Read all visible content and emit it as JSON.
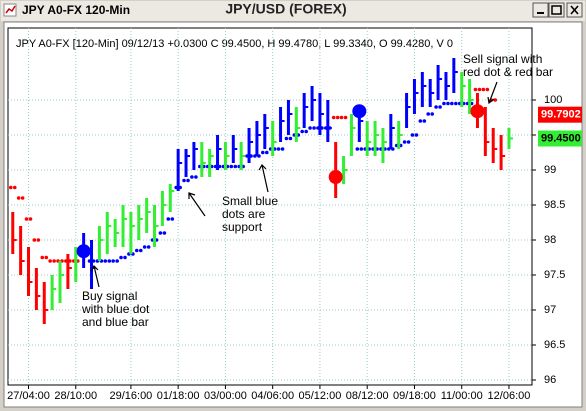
{
  "window": {
    "title": "JPY A0-FX 120-Min"
  },
  "chart_data": {
    "type": "ohlc",
    "title": "JPY/USD (FOREX)",
    "subtitle": "JPY A0-FX [120-Min] 09/12/13 +0.0300 C 99.4500, H 99.4780, L 99.3340, O 99.4280, V 0",
    "xlim": [
      -0.35,
      64.4
    ],
    "ylim": [
      95.95,
      101.0
    ],
    "yticks": [
      96,
      96.5,
      97,
      97.5,
      98,
      98.5,
      99,
      99.5,
      100
    ],
    "xticks": [
      {
        "value": 2,
        "label": "27/04:00"
      },
      {
        "value": 8,
        "label": "28/10:00"
      },
      {
        "value": 15,
        "label": "29/16:00"
      },
      {
        "value": 21,
        "label": "01/18:00"
      },
      {
        "value": 27,
        "label": "03/00:00"
      },
      {
        "value": 33,
        "label": "04/06:00"
      },
      {
        "value": 39,
        "label": "05/12:00"
      },
      {
        "value": 45,
        "label": "08/12:00"
      },
      {
        "value": 51,
        "label": "09/18:00"
      },
      {
        "value": 57,
        "label": "11/00:00"
      },
      {
        "value": 63,
        "label": "12/06:00"
      }
    ],
    "grid": true,
    "high": [
      98.4,
      98.2,
      97.9,
      97.6,
      97.4,
      97.5,
      97.7,
      97.8,
      97.9,
      98.1,
      98.0,
      98.2,
      98.4,
      98.3,
      98.5,
      98.4,
      98.5,
      98.6,
      98.5,
      98.7,
      98.8,
      99.3,
      99.3,
      99.4,
      99.4,
      99.3,
      99.5,
      99.4,
      99.5,
      99.4,
      99.6,
      99.7,
      99.8,
      99.7,
      99.9,
      100.0,
      99.9,
      100.1,
      100.2,
      100.1,
      100.0,
      99.4,
      99.2,
      99.8,
      99.9,
      99.7,
      99.7,
      99.6,
      99.8,
      99.7,
      100.1,
      100.3,
      100.4,
      100.3,
      100.5,
      100.4,
      100.6,
      100.4,
      100.3,
      100.1,
      99.9,
      99.6,
      99.5,
      99.6
    ],
    "low": [
      97.8,
      97.5,
      97.2,
      97.0,
      96.8,
      97.0,
      97.1,
      97.3,
      97.4,
      97.6,
      97.3,
      97.7,
      97.8,
      97.9,
      97.9,
      97.8,
      98.0,
      98.1,
      97.9,
      98.2,
      98.4,
      98.7,
      98.9,
      99.0,
      98.9,
      98.9,
      99.0,
      99.0,
      99.1,
      99.0,
      99.1,
      99.2,
      99.3,
      99.2,
      99.4,
      99.5,
      99.4,
      99.6,
      99.7,
      99.5,
      99.4,
      98.6,
      98.8,
      99.2,
      99.4,
      99.2,
      99.2,
      99.1,
      99.3,
      99.3,
      99.6,
      99.8,
      99.9,
      99.9,
      100.0,
      100.0,
      100.1,
      99.9,
      99.8,
      99.6,
      99.2,
      99.1,
      99.0,
      99.3
    ],
    "close": [
      98.0,
      97.7,
      97.4,
      97.2,
      97.0,
      97.3,
      97.5,
      97.6,
      97.8,
      97.9,
      97.6,
      98.0,
      98.2,
      98.1,
      98.3,
      98.2,
      98.3,
      98.4,
      98.2,
      98.5,
      98.7,
      99.1,
      99.2,
      99.3,
      99.1,
      99.2,
      99.3,
      99.2,
      99.3,
      99.2,
      99.4,
      99.5,
      99.6,
      99.4,
      99.7,
      99.8,
      99.6,
      99.9,
      100.0,
      99.8,
      99.6,
      98.9,
      99.0,
      99.6,
      99.7,
      99.4,
      99.5,
      99.4,
      99.6,
      99.5,
      99.9,
      100.1,
      100.2,
      100.1,
      100.3,
      100.2,
      100.4,
      100.2,
      100.0,
      99.8,
      99.4,
      99.3,
      99.2,
      99.45
    ],
    "bar_colors": [
      "red",
      "red",
      "red",
      "red",
      "red",
      "#33ee33",
      "#33ee33",
      "red",
      "#33ee33",
      "blue",
      "blue",
      "#33ee33",
      "#33ee33",
      "#33ee33",
      "#33ee33",
      "#33ee33",
      "#33ee33",
      "#33ee33",
      "#33ee33",
      "#33ee33",
      "#33ee33",
      "blue",
      "blue",
      "blue",
      "#33ee33",
      "#33ee33",
      "blue",
      "#33ee33",
      "blue",
      "#33ee33",
      "blue",
      "blue",
      "blue",
      "#33ee33",
      "blue",
      "blue",
      "#33ee33",
      "blue",
      "blue",
      "blue",
      "blue",
      "red",
      "#33ee33",
      "#33ee33",
      "blue",
      "#33ee33",
      "#33ee33",
      "#33ee33",
      "blue",
      "#33ee33",
      "blue",
      "blue",
      "blue",
      "blue",
      "blue",
      "blue",
      "blue",
      "#33ee33",
      "#33ee33",
      "red",
      "red",
      "red",
      "red",
      "#33ee33"
    ],
    "series": [
      {
        "color": "red",
        "values": [
          98.75,
          98.6,
          98.3,
          98.0,
          97.75,
          97.7,
          97.7,
          97.7,
          97.7,
          null,
          null,
          null,
          null,
          null,
          null,
          null,
          null,
          null,
          null,
          null,
          null,
          null,
          null,
          null,
          null,
          null,
          null,
          null,
          null,
          null,
          null,
          null,
          null,
          null,
          null,
          null,
          null,
          null,
          null,
          null,
          null,
          99.75,
          99.75,
          null,
          null,
          null,
          null,
          null,
          null,
          null,
          null,
          null,
          null,
          null,
          null,
          null,
          null,
          null,
          null,
          100.15,
          100.15,
          100.0,
          null,
          null
        ]
      },
      {
        "color": "blue",
        "values": [
          null,
          null,
          null,
          null,
          null,
          null,
          null,
          null,
          null,
          97.8,
          97.7,
          97.7,
          97.7,
          97.7,
          97.75,
          97.8,
          97.85,
          97.9,
          98.0,
          98.1,
          98.3,
          98.75,
          98.85,
          98.9,
          99.05,
          99.05,
          99.05,
          99.05,
          99.05,
          99.05,
          99.2,
          99.2,
          99.25,
          99.3,
          99.3,
          99.45,
          99.5,
          99.55,
          99.6,
          99.6,
          99.6,
          null,
          null,
          null,
          99.3,
          99.3,
          99.3,
          99.3,
          99.3,
          99.35,
          99.4,
          99.5,
          99.7,
          99.8,
          99.9,
          99.95,
          99.95,
          99.95,
          99.95,
          null,
          null,
          null,
          null,
          null
        ]
      }
    ],
    "signals": {
      "x": [
        9,
        41,
        44,
        59
      ],
      "values": [
        97.84,
        98.9,
        99.84,
        99.84
      ],
      "colors": [
        "blue",
        "red",
        "blue",
        "red"
      ]
    },
    "price_labels": [
      {
        "value": 99.7902,
        "label": "99.7902",
        "color": "red"
      },
      {
        "value": 99.45,
        "label": "99.4500",
        "color": "#33ee33"
      }
    ],
    "annotations": [
      [
        "Buy signal",
        "with blue dot",
        "and blue bar"
      ],
      [
        "Small blue",
        "dots are",
        "support"
      ],
      [
        "Sell signal with",
        "red dot & red bar"
      ]
    ]
  }
}
